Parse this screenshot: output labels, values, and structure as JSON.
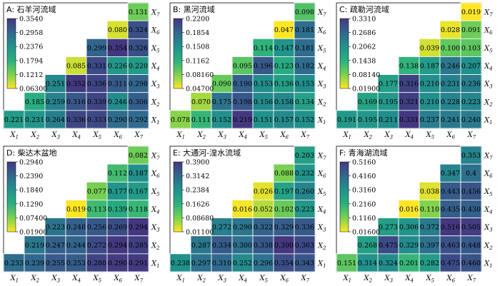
{
  "figure": {
    "x_labels": [
      "X1",
      "X2",
      "X3",
      "X4",
      "X5",
      "X6",
      "X7"
    ],
    "y_labels": [
      "X1",
      "X2",
      "X3",
      "X4",
      "X5",
      "X6",
      "X7"
    ]
  },
  "chart_data": [
    {
      "type": "heatmap",
      "title": "A: 石羊河流域",
      "colorbar_ticks": [
        "0.3540",
        "0.2958",
        "0.2376",
        "0.1794",
        "0.1212",
        "0.06300"
      ],
      "colorbar_range": [
        0.063,
        0.354
      ],
      "rows": [
        {
          "y": "X7",
          "values": [
            null,
            null,
            null,
            null,
            null,
            null,
            0.131
          ]
        },
        {
          "y": "X6",
          "values": [
            null,
            null,
            null,
            null,
            null,
            0.08,
            0.324
          ]
        },
        {
          "y": "X5",
          "values": [
            null,
            null,
            null,
            null,
            0.299,
            0.354,
            0.326
          ]
        },
        {
          "y": "X4",
          "values": [
            null,
            null,
            null,
            0.085,
            0.331,
            0.226,
            0.22
          ]
        },
        {
          "y": "X3",
          "values": [
            null,
            null,
            0.251,
            0.352,
            0.336,
            0.311,
            0.298
          ]
        },
        {
          "y": "X2",
          "values": [
            null,
            0.185,
            0.259,
            0.316,
            0.339,
            0.246,
            0.306
          ]
        },
        {
          "y": "X1",
          "values": [
            0.221,
            0.231,
            0.264,
            0.336,
            0.333,
            0.29,
            0.292
          ]
        }
      ]
    },
    {
      "type": "heatmap",
      "title": "B: 黑河流域",
      "colorbar_ticks": [
        "0.2200",
        "0.1854",
        "0.1508",
        "0.1162",
        "0.08160",
        "0.04700"
      ],
      "colorbar_range": [
        0.047,
        0.22
      ],
      "rows": [
        {
          "y": "X7",
          "values": [
            null,
            null,
            null,
            null,
            null,
            null,
            0.098
          ]
        },
        {
          "y": "X6",
          "values": [
            null,
            null,
            null,
            null,
            null,
            0.047,
            0.181
          ]
        },
        {
          "y": "X5",
          "values": [
            null,
            null,
            null,
            null,
            0.114,
            0.147,
            0.181
          ]
        },
        {
          "y": "X4",
          "values": [
            null,
            null,
            null,
            0.095,
            0.196,
            0.123,
            0.182
          ]
        },
        {
          "y": "X3",
          "values": [
            null,
            null,
            0.09,
            0.19,
            0.153,
            0.136,
            0.153
          ]
        },
        {
          "y": "X2",
          "values": [
            null,
            0.07,
            0.175,
            0.198,
            0.156,
            0.158,
            0.134
          ]
        },
        {
          "y": "X1",
          "values": [
            0.078,
            0.111,
            0.152,
            0.219,
            0.151,
            0.157,
            0.152
          ]
        }
      ]
    },
    {
      "type": "heatmap",
      "title": "C: 疏勒河流域",
      "colorbar_ticks": [
        "0.3310",
        "0.2686",
        "0.2062",
        "0.1438",
        "0.08140",
        "0.01900"
      ],
      "colorbar_range": [
        0.019,
        0.331
      ],
      "rows": [
        {
          "y": "X7",
          "values": [
            null,
            null,
            null,
            null,
            null,
            null,
            0.019
          ]
        },
        {
          "y": "X6",
          "values": [
            null,
            null,
            null,
            null,
            null,
            0.028,
            0.091
          ]
        },
        {
          "y": "X5",
          "values": [
            null,
            null,
            null,
            null,
            0.039,
            0.1,
            0.103
          ]
        },
        {
          "y": "X4",
          "values": [
            null,
            null,
            null,
            0.138,
            0.187,
            0.246,
            0.207
          ]
        },
        {
          "y": "X3",
          "values": [
            null,
            null,
            0.177,
            0.316,
            0.21,
            0.231,
            0.236
          ]
        },
        {
          "y": "X2",
          "values": [
            null,
            0.169,
            0.195,
            0.321,
            0.21,
            0.228,
            0.223
          ]
        },
        {
          "y": "X1",
          "values": [
            0.191,
            0.195,
            0.211,
            0.331,
            0.237,
            0.241,
            0.24
          ]
        }
      ]
    },
    {
      "type": "heatmap",
      "title": "D: 柴达木盆地",
      "colorbar_ticks": [
        "0.2940",
        "0.2390",
        "0.1840",
        "0.1290",
        "0.07400",
        "0.01900"
      ],
      "colorbar_range": [
        0.019,
        0.294
      ],
      "rows": [
        {
          "y": "X7",
          "values": [
            null,
            null,
            null,
            null,
            null,
            null,
            0.082
          ]
        },
        {
          "y": "X6",
          "values": [
            null,
            null,
            null,
            null,
            null,
            0.112,
            0.187
          ]
        },
        {
          "y": "X5",
          "values": [
            null,
            null,
            null,
            null,
            0.077,
            0.177,
            0.167
          ]
        },
        {
          "y": "X4",
          "values": [
            null,
            null,
            null,
            0.019,
            0.113,
            0.139,
            0.118
          ]
        },
        {
          "y": "X3",
          "values": [
            null,
            null,
            0.223,
            0.248,
            0.256,
            0.269,
            0.294
          ]
        },
        {
          "y": "X2",
          "values": [
            null,
            0.219,
            0.247,
            0.244,
            0.272,
            0.294,
            0.285
          ]
        },
        {
          "y": "X1",
          "values": [
            0.233,
            0.239,
            0.255,
            0.253,
            0.28,
            0.29,
            0.291
          ]
        }
      ]
    },
    {
      "type": "heatmap",
      "title": "E: 大通河-湟水流域",
      "colorbar_ticks": [
        "0.3900",
        "0.3142",
        "0.2384",
        "0.1626",
        "0.08680",
        "0.01100"
      ],
      "colorbar_range": [
        0.011,
        0.39
      ],
      "rows": [
        {
          "y": "X7",
          "values": [
            null,
            null,
            null,
            null,
            null,
            null,
            0.203
          ]
        },
        {
          "y": "X6",
          "values": [
            null,
            null,
            null,
            null,
            null,
            0.088,
            0.232
          ]
        },
        {
          "y": "X5",
          "values": [
            null,
            null,
            null,
            null,
            0.026,
            0.197,
            0.26
          ]
        },
        {
          "y": "X4",
          "values": [
            null,
            null,
            null,
            0.016,
            0.052,
            0.102,
            0.223
          ]
        },
        {
          "y": "X3",
          "values": [
            null,
            null,
            0.272,
            0.29,
            0.322,
            0.329,
            0.336
          ]
        },
        {
          "y": "X2",
          "values": [
            null,
            0.287,
            0.334,
            0.3,
            0.338,
            0.39,
            0.363
          ]
        },
        {
          "y": "X1",
          "values": [
            0.238,
            0.297,
            0.31,
            0.252,
            0.296,
            0.354,
            0.343
          ]
        }
      ]
    },
    {
      "type": "heatmap",
      "title": "F: 青海湖流域",
      "colorbar_ticks": [
        "0.5160",
        "0.4160",
        "0.3160",
        "0.2160",
        "0.1160",
        "0.01600"
      ],
      "colorbar_range": [
        0.016,
        0.516
      ],
      "rows": [
        {
          "y": "X7",
          "values": [
            null,
            null,
            null,
            null,
            null,
            null,
            0.353
          ]
        },
        {
          "y": "X6",
          "values": [
            null,
            null,
            null,
            null,
            null,
            0.347,
            "0.4"
          ]
        },
        {
          "y": "X5",
          "values": [
            null,
            null,
            null,
            null,
            0.038,
            0.443,
            0.456
          ]
        },
        {
          "y": "X4",
          "values": [
            null,
            null,
            null,
            0.016,
            0.11,
            0.435,
            0.43
          ]
        },
        {
          "y": "X3",
          "values": [
            null,
            null,
            0.273,
            0.306,
            0.372,
            0.516,
            0.505
          ]
        },
        {
          "y": "X2",
          "values": [
            null,
            0.268,
            0.475,
            0.329,
            0.397,
            0.463,
            0.448
          ]
        },
        {
          "y": "X1",
          "values": [
            0.151,
            0.314,
            0.324,
            0.201,
            0.282,
            0.475,
            0.46
          ]
        }
      ]
    }
  ]
}
